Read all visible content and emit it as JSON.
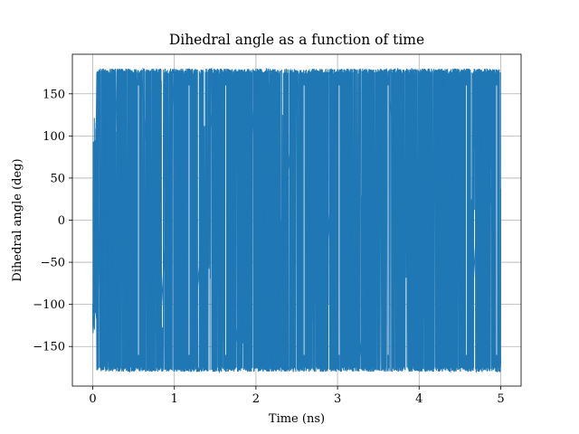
{
  "chart_data": {
    "type": "line",
    "title": "Dihedral angle as a function of time",
    "xlabel": "Time (ns)",
    "ylabel": "Dihedral angle (deg)",
    "xlim": [
      -0.25,
      5.25
    ],
    "ylim": [
      -197,
      197
    ],
    "x_ticks": [
      0,
      1,
      2,
      3,
      4,
      5
    ],
    "x_tick_labels": [
      "0",
      "1",
      "2",
      "3",
      "4",
      "5"
    ],
    "y_ticks": [
      -150,
      -100,
      -50,
      0,
      50,
      100,
      150
    ],
    "y_tick_labels": [
      "−150",
      "−100",
      "−50",
      "0",
      "50",
      "100",
      "150"
    ],
    "grid": true,
    "series": [
      {
        "color": "#1f77b4",
        "x_range": [
          0,
          5
        ],
        "y_range": [
          -180,
          180
        ],
        "x": [
          0.0,
          0.02,
          0.04,
          0.05,
          0.07,
          0.1,
          0.15,
          0.2,
          0.3,
          0.45,
          0.6,
          0.8,
          1.0,
          1.2,
          1.5,
          1.8,
          2.0,
          2.2,
          2.5,
          2.8,
          3.0,
          3.3,
          3.6,
          4.0,
          4.3,
          4.6,
          4.8,
          5.0
        ],
        "y": [
          -100,
          -130,
          80,
          175,
          20,
          -150,
          170,
          -178,
          179,
          -175,
          178,
          -179,
          180,
          -180,
          179,
          -178,
          180,
          -179,
          178,
          -180,
          179,
          -178,
          180,
          -179,
          178,
          -180,
          150,
          -170
        ]
      }
    ]
  }
}
